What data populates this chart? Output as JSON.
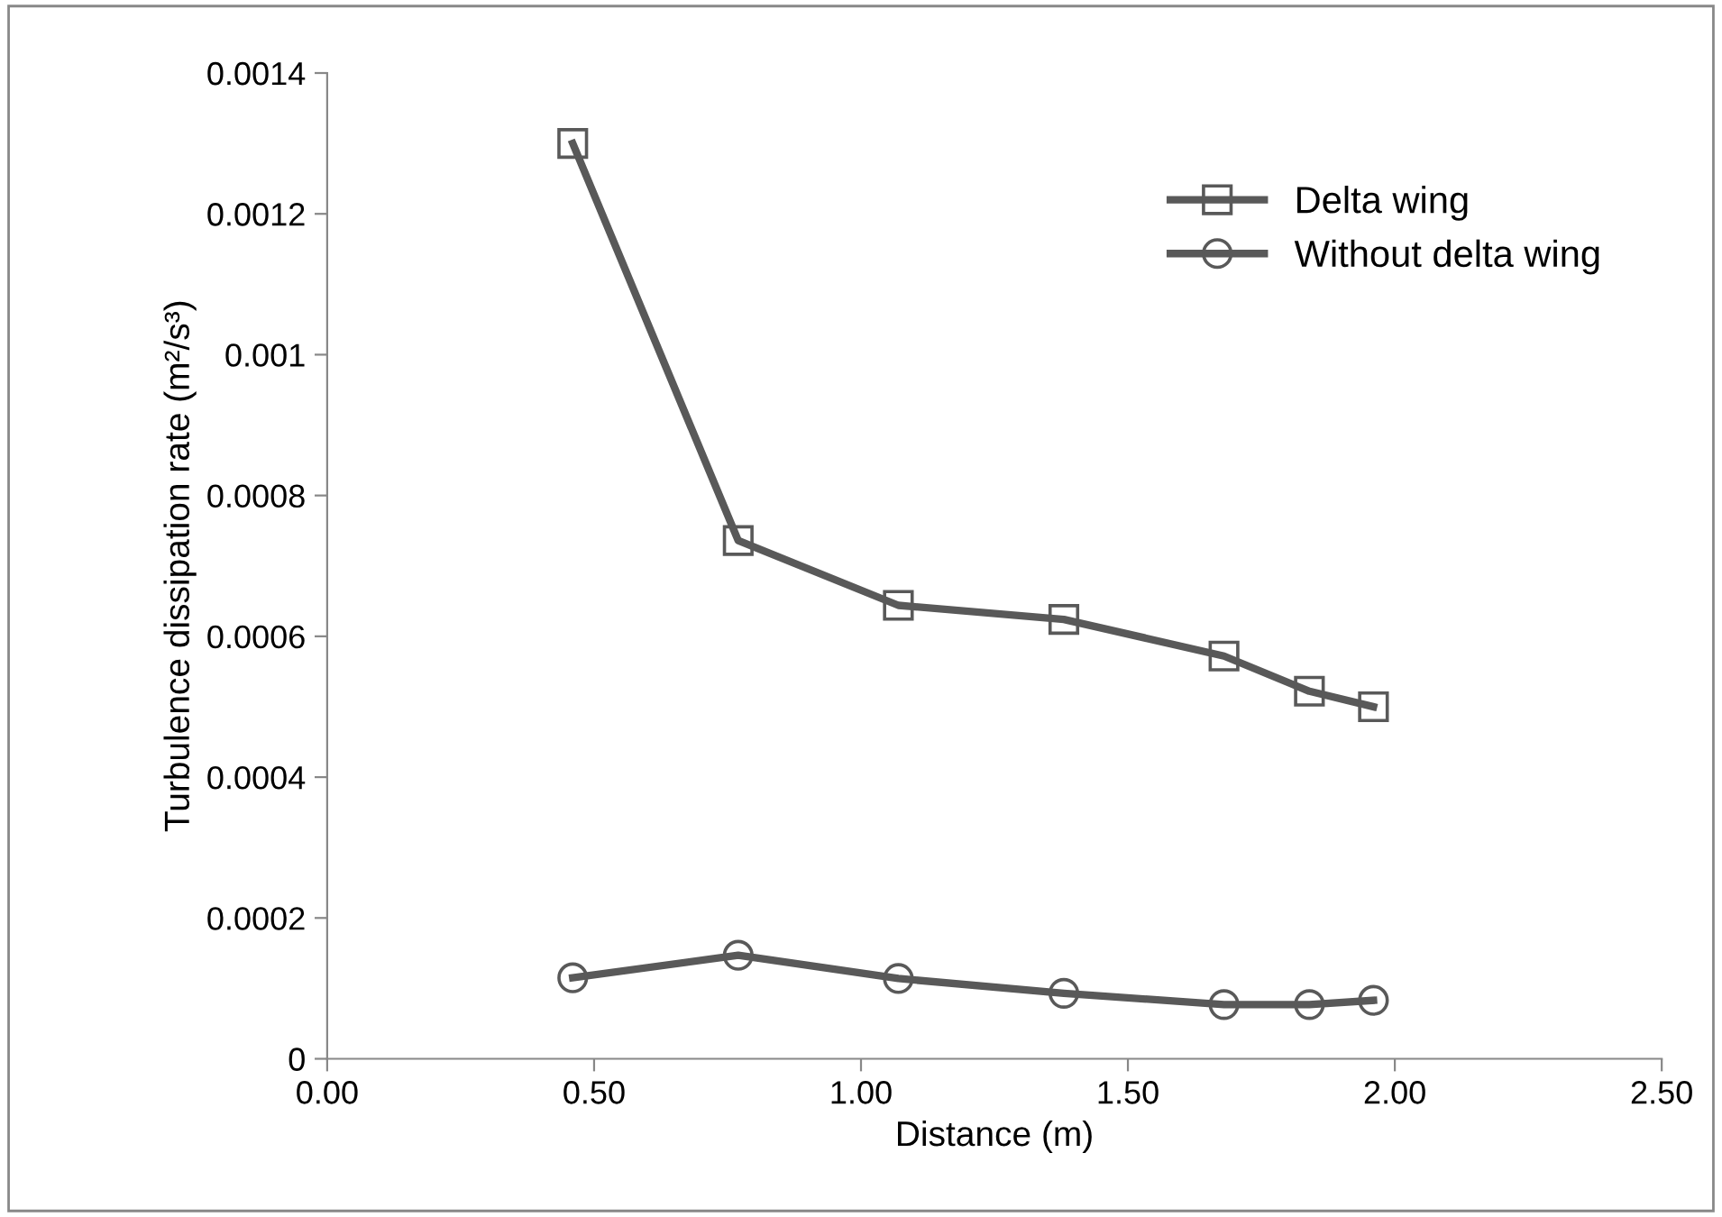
{
  "chart_data": {
    "type": "line",
    "xlabel": "Distance (m)",
    "ylabel": "Turbulence dissipation rate (m²/s³)",
    "x": [
      0.46,
      0.77,
      1.07,
      1.38,
      1.68,
      1.84,
      1.96
    ],
    "series": [
      {
        "name": "Delta wing",
        "color": "#595959",
        "marker": "square",
        "values": [
          0.0013,
          0.000736,
          0.000644,
          0.000624,
          0.000572,
          0.000522,
          0.0005
        ]
      },
      {
        "name": "Without delta wing",
        "color": "#595959",
        "marker": "circle",
        "values": [
          0.000115,
          0.000147,
          0.000114,
          9.3e-05,
          7.7e-05,
          7.7e-05,
          8.3e-05
        ]
      }
    ],
    "xlim": [
      0,
      2.5
    ],
    "xticks": [
      {
        "value": 0,
        "label": "0.00"
      },
      {
        "value": 0.5,
        "label": "0.50"
      },
      {
        "value": 1,
        "label": "1.00"
      },
      {
        "value": 1.5,
        "label": "1.50"
      },
      {
        "value": 2,
        "label": "2.00"
      },
      {
        "value": 2.5,
        "label": "2.50"
      }
    ],
    "ylim": [
      0,
      0.0014
    ],
    "yticks": [
      0,
      0.0002,
      0.0004,
      0.0006,
      0.0008,
      0.001,
      0.0012,
      0.0014
    ],
    "grid": false,
    "legend": "top right",
    "line_style": "solid"
  }
}
